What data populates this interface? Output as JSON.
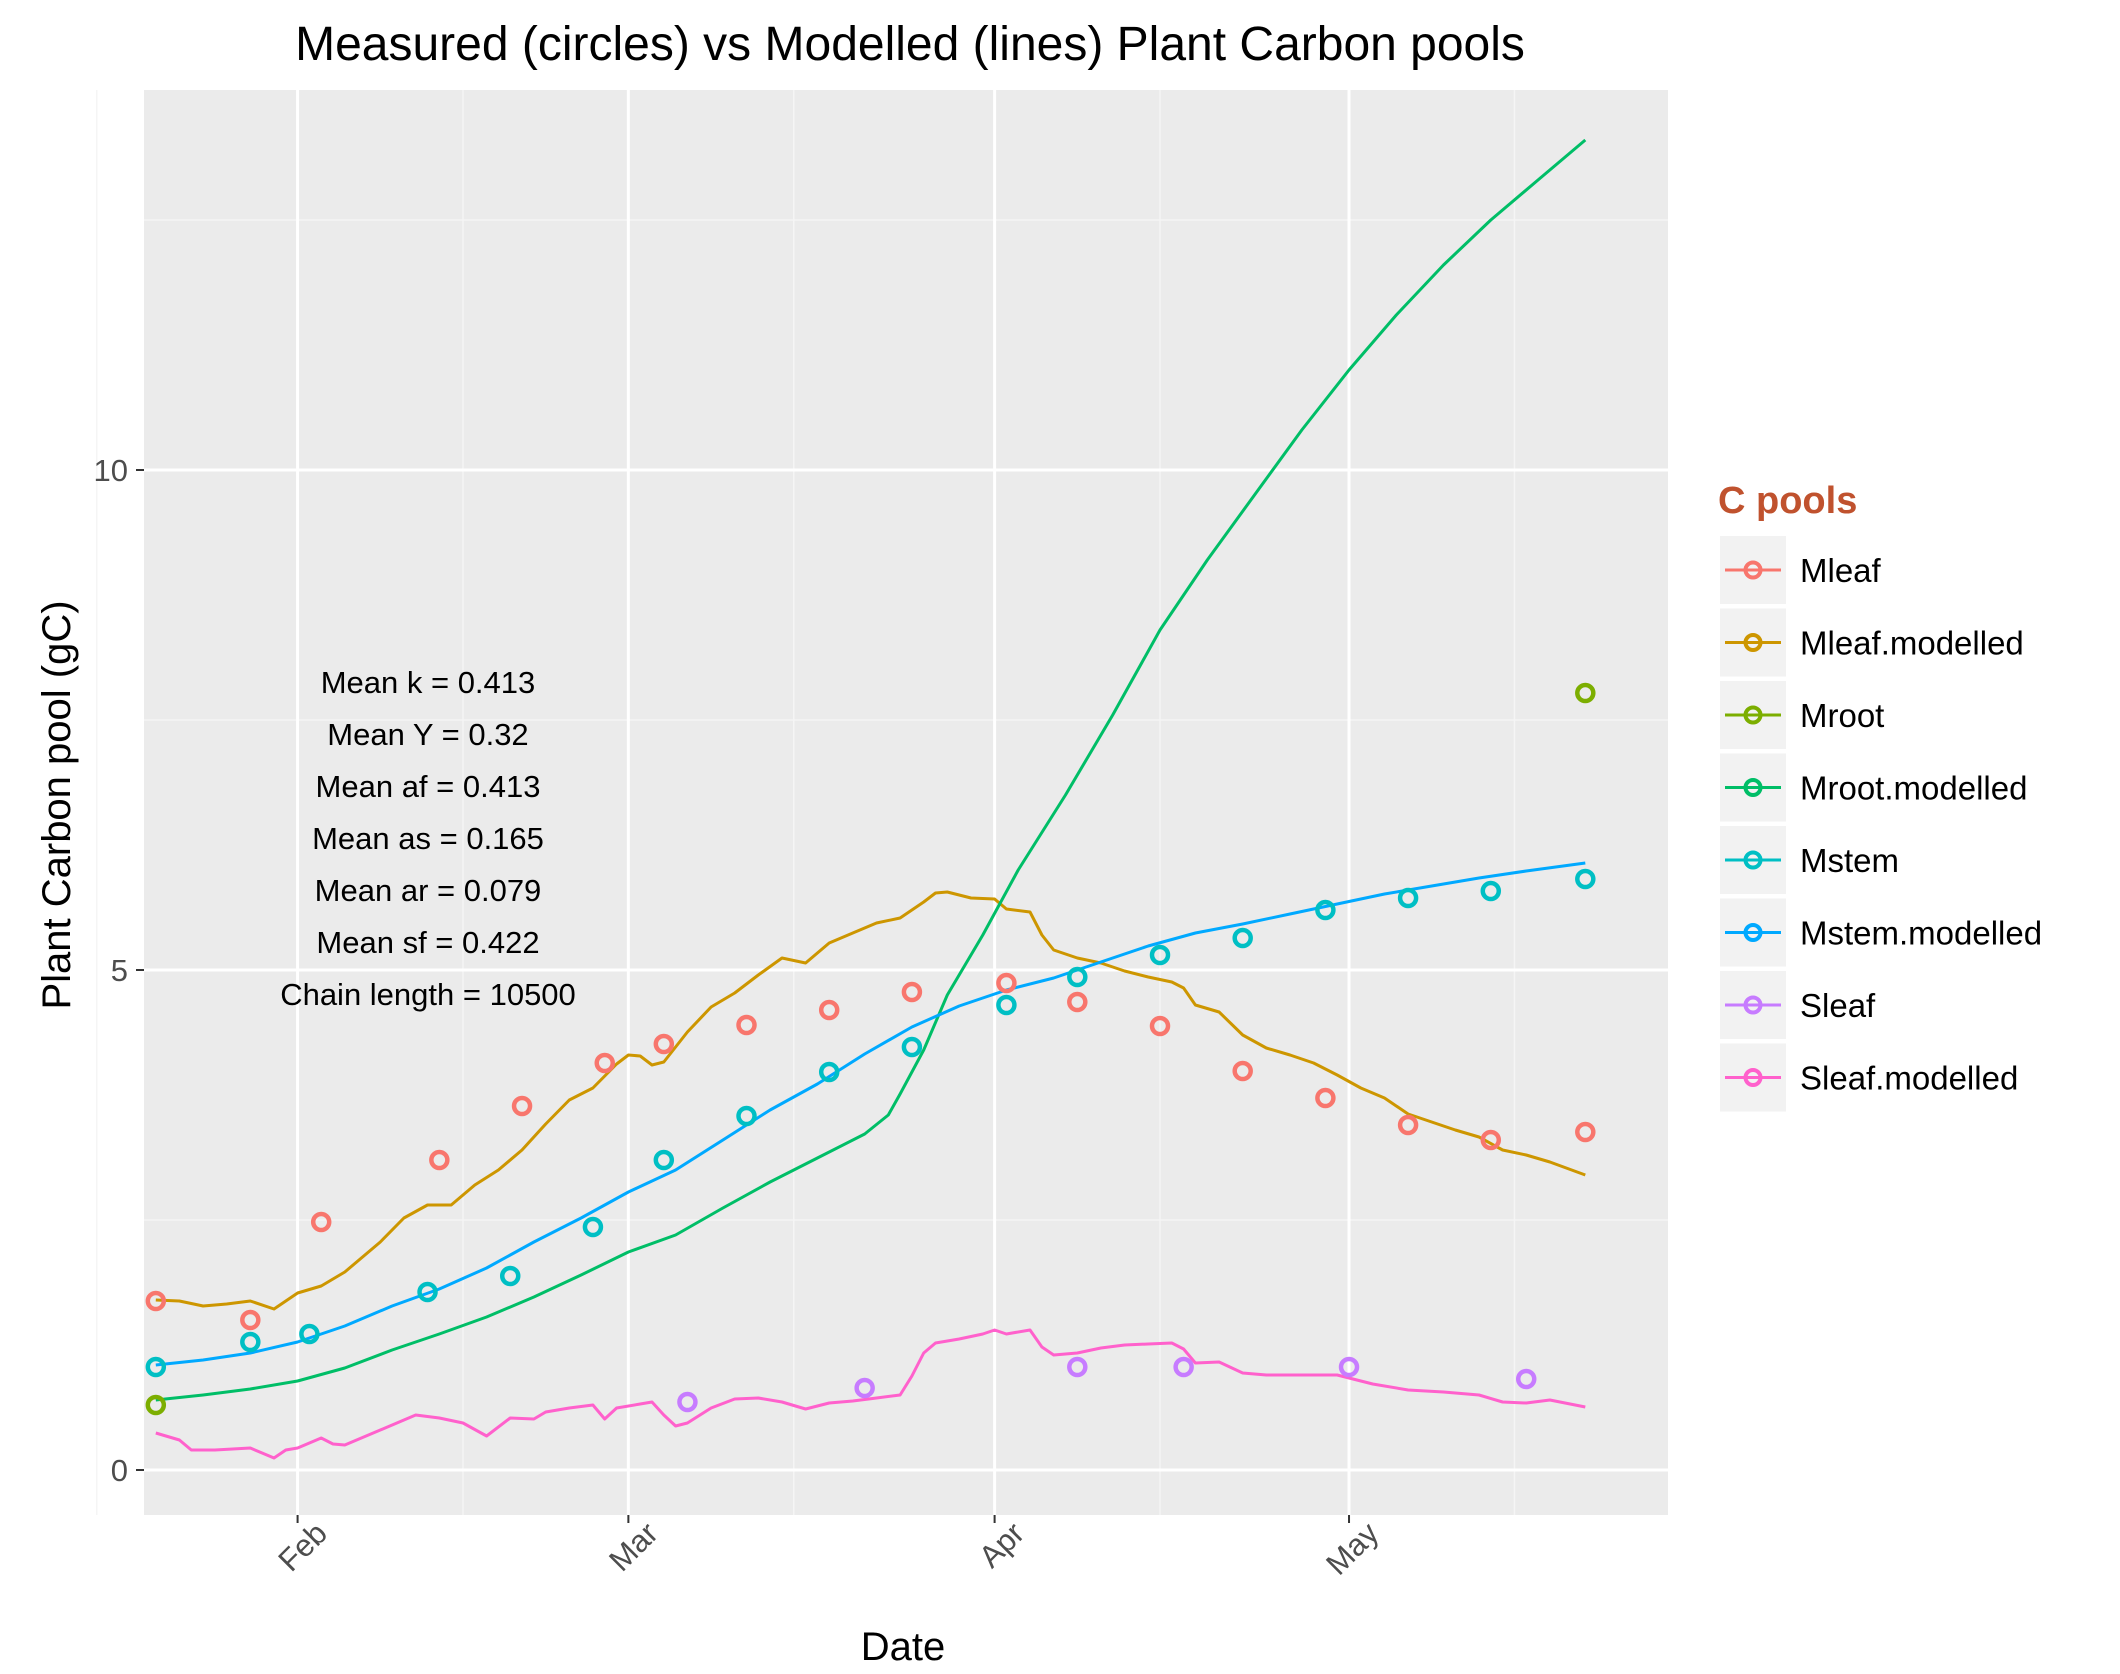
{
  "chart_data": {
    "type": "line",
    "title": "Measured (circles) vs Modelled (lines) Plant Carbon pools",
    "xlabel": "Date",
    "ylabel": "Plant Carbon pool (gC)",
    "x_axis": {
      "kind": "date",
      "range": [
        "2013-01-19",
        "2013-05-28"
      ],
      "ticks": [
        {
          "date": "2013-02-01",
          "label": "Feb"
        },
        {
          "date": "2013-03-01",
          "label": "Mar"
        },
        {
          "date": "2013-04-01",
          "label": "Apr"
        },
        {
          "date": "2013-05-01",
          "label": "May"
        }
      ],
      "minor_ticks": [
        "2013-01-15",
        "2013-02-15",
        "2013-03-15",
        "2013-04-15",
        "2013-05-15"
      ],
      "tick_label_rotation": 45
    },
    "y_axis": {
      "ylim": [
        -0.45,
        13.8
      ],
      "ticks": [
        0,
        5,
        10
      ],
      "minor_ticks": [
        2.5,
        7.5,
        12.5
      ]
    },
    "grid": true,
    "legend": {
      "title": "C pools",
      "position": "right",
      "entries": [
        "Mleaf",
        "Mleaf.modelled",
        "Mroot",
        "Mroot.modelled",
        "Mstem",
        "Mstem.modelled",
        "Sleaf",
        "Sleaf.modelled"
      ]
    },
    "colors": {
      "Mleaf": "#F8766D",
      "Mleaf.modelled": "#CD9600",
      "Mroot": "#7CAE00",
      "Mroot.modelled": "#00BE67",
      "Mstem": "#00BFC4",
      "Mstem.modelled": "#00A9FF",
      "Sleaf": "#C77CFF",
      "Sleaf.modelled": "#FF61CC"
    },
    "annotations": [
      "Mean k =  0.413",
      "Mean Y =  0.32",
      "Mean af =  0.413",
      "Mean as =  0.165",
      "Mean ar =  0.079",
      "Mean sf =  0.422",
      "Chain length =  10500"
    ],
    "series": [
      {
        "name": "Mleaf",
        "kind": "points",
        "points": [
          [
            "2013-01-20",
            1.69
          ],
          [
            "2013-01-28",
            1.5
          ],
          [
            "2013-02-03",
            2.48
          ],
          [
            "2013-02-13",
            3.1
          ],
          [
            "2013-02-20",
            3.64
          ],
          [
            "2013-02-27",
            4.07
          ],
          [
            "2013-03-04",
            4.26
          ],
          [
            "2013-03-11",
            4.45
          ],
          [
            "2013-03-18",
            4.6
          ],
          [
            "2013-03-25",
            4.78
          ],
          [
            "2013-04-02",
            4.87
          ],
          [
            "2013-04-08",
            4.68
          ],
          [
            "2013-04-15",
            4.44
          ],
          [
            "2013-04-22",
            3.99
          ],
          [
            "2013-04-29",
            3.72
          ],
          [
            "2013-05-06",
            3.45
          ],
          [
            "2013-05-13",
            3.3
          ],
          [
            "2013-05-21",
            3.38
          ]
        ]
      },
      {
        "name": "Mleaf.modelled",
        "kind": "line",
        "points": [
          [
            "2013-01-20",
            1.7
          ],
          [
            "2013-01-22",
            1.69
          ],
          [
            "2013-01-24",
            1.64
          ],
          [
            "2013-01-26",
            1.66
          ],
          [
            "2013-01-28",
            1.69
          ],
          [
            "2013-01-30",
            1.61
          ],
          [
            "2013-02-01",
            1.77
          ],
          [
            "2013-02-03",
            1.84
          ],
          [
            "2013-02-05",
            1.98
          ],
          [
            "2013-02-08",
            2.28
          ],
          [
            "2013-02-10",
            2.52
          ],
          [
            "2013-02-12",
            2.65
          ],
          [
            "2013-02-14",
            2.65
          ],
          [
            "2013-02-16",
            2.85
          ],
          [
            "2013-02-18",
            3.0
          ],
          [
            "2013-02-20",
            3.2
          ],
          [
            "2013-02-22",
            3.46
          ],
          [
            "2013-02-24",
            3.7
          ],
          [
            "2013-02-26",
            3.82
          ],
          [
            "2013-02-28",
            4.06
          ],
          [
            "2013-03-01",
            4.15
          ],
          [
            "2013-03-02",
            4.14
          ],
          [
            "2013-03-03",
            4.05
          ],
          [
            "2013-03-04",
            4.08
          ],
          [
            "2013-03-06",
            4.38
          ],
          [
            "2013-03-08",
            4.63
          ],
          [
            "2013-03-10",
            4.77
          ],
          [
            "2013-03-12",
            4.95
          ],
          [
            "2013-03-14",
            5.12
          ],
          [
            "2013-03-16",
            5.07
          ],
          [
            "2013-03-18",
            5.27
          ],
          [
            "2013-03-20",
            5.37
          ],
          [
            "2013-03-22",
            5.47
          ],
          [
            "2013-03-24",
            5.52
          ],
          [
            "2013-03-26",
            5.68
          ],
          [
            "2013-03-27",
            5.77
          ],
          [
            "2013-03-28",
            5.78
          ],
          [
            "2013-03-30",
            5.72
          ],
          [
            "2013-04-01",
            5.71
          ],
          [
            "2013-04-02",
            5.61
          ],
          [
            "2013-04-04",
            5.58
          ],
          [
            "2013-04-05",
            5.35
          ],
          [
            "2013-04-06",
            5.2
          ],
          [
            "2013-04-08",
            5.12
          ],
          [
            "2013-04-10",
            5.07
          ],
          [
            "2013-04-12",
            4.99
          ],
          [
            "2013-04-14",
            4.93
          ],
          [
            "2013-04-16",
            4.88
          ],
          [
            "2013-04-17",
            4.82
          ],
          [
            "2013-04-18",
            4.65
          ],
          [
            "2013-04-20",
            4.58
          ],
          [
            "2013-04-22",
            4.35
          ],
          [
            "2013-04-24",
            4.22
          ],
          [
            "2013-04-26",
            4.15
          ],
          [
            "2013-04-28",
            4.07
          ],
          [
            "2013-04-30",
            3.95
          ],
          [
            "2013-05-02",
            3.82
          ],
          [
            "2013-05-04",
            3.72
          ],
          [
            "2013-05-06",
            3.56
          ],
          [
            "2013-05-08",
            3.48
          ],
          [
            "2013-05-10",
            3.4
          ],
          [
            "2013-05-12",
            3.33
          ],
          [
            "2013-05-14",
            3.2
          ],
          [
            "2013-05-16",
            3.15
          ],
          [
            "2013-05-18",
            3.08
          ],
          [
            "2013-05-21",
            2.95
          ]
        ]
      },
      {
        "name": "Mroot",
        "kind": "points",
        "points": [
          [
            "2013-01-20",
            0.65
          ],
          [
            "2013-05-21",
            7.77
          ]
        ]
      },
      {
        "name": "Mroot.modelled",
        "kind": "line",
        "points": [
          [
            "2013-01-20",
            0.7
          ],
          [
            "2013-01-24",
            0.75
          ],
          [
            "2013-01-28",
            0.81
          ],
          [
            "2013-02-01",
            0.89
          ],
          [
            "2013-02-05",
            1.02
          ],
          [
            "2013-02-09",
            1.2
          ],
          [
            "2013-02-13",
            1.36
          ],
          [
            "2013-02-17",
            1.53
          ],
          [
            "2013-02-21",
            1.73
          ],
          [
            "2013-02-25",
            1.95
          ],
          [
            "2013-03-01",
            2.18
          ],
          [
            "2013-03-05",
            2.35
          ],
          [
            "2013-03-09",
            2.62
          ],
          [
            "2013-03-13",
            2.88
          ],
          [
            "2013-03-17",
            3.12
          ],
          [
            "2013-03-21",
            3.36
          ],
          [
            "2013-03-23",
            3.55
          ],
          [
            "2013-03-24",
            3.76
          ],
          [
            "2013-03-26",
            4.2
          ],
          [
            "2013-03-28",
            4.75
          ],
          [
            "2013-03-31",
            5.35
          ],
          [
            "2013-04-03",
            6.0
          ],
          [
            "2013-04-07",
            6.75
          ],
          [
            "2013-04-11",
            7.55
          ],
          [
            "2013-04-15",
            8.4
          ],
          [
            "2013-04-19",
            9.1
          ],
          [
            "2013-04-23",
            9.75
          ],
          [
            "2013-04-27",
            10.4
          ],
          [
            "2013-05-01",
            11.0
          ],
          [
            "2013-05-05",
            11.55
          ],
          [
            "2013-05-09",
            12.05
          ],
          [
            "2013-05-13",
            12.5
          ],
          [
            "2013-05-17",
            12.9
          ],
          [
            "2013-05-21",
            13.3
          ]
        ]
      },
      {
        "name": "Mstem",
        "kind": "points",
        "points": [
          [
            "2013-01-20",
            1.03
          ],
          [
            "2013-01-28",
            1.28
          ],
          [
            "2013-02-02",
            1.36
          ],
          [
            "2013-02-12",
            1.78
          ],
          [
            "2013-02-19",
            1.94
          ],
          [
            "2013-02-26",
            2.43
          ],
          [
            "2013-03-04",
            3.1
          ],
          [
            "2013-03-11",
            3.54
          ],
          [
            "2013-03-18",
            3.98
          ],
          [
            "2013-03-25",
            4.23
          ],
          [
            "2013-04-02",
            4.65
          ],
          [
            "2013-04-08",
            4.93
          ],
          [
            "2013-04-15",
            5.15
          ],
          [
            "2013-04-22",
            5.32
          ],
          [
            "2013-04-29",
            5.6
          ],
          [
            "2013-05-06",
            5.72
          ],
          [
            "2013-05-13",
            5.79
          ],
          [
            "2013-05-21",
            5.91
          ]
        ]
      },
      {
        "name": "Mstem.modelled",
        "kind": "line",
        "points": [
          [
            "2013-01-20",
            1.05
          ],
          [
            "2013-01-24",
            1.1
          ],
          [
            "2013-01-28",
            1.17
          ],
          [
            "2013-02-01",
            1.28
          ],
          [
            "2013-02-05",
            1.44
          ],
          [
            "2013-02-09",
            1.64
          ],
          [
            "2013-02-13",
            1.81
          ],
          [
            "2013-02-17",
            2.02
          ],
          [
            "2013-02-21",
            2.28
          ],
          [
            "2013-02-25",
            2.52
          ],
          [
            "2013-03-01",
            2.78
          ],
          [
            "2013-03-05",
            3.0
          ],
          [
            "2013-03-09",
            3.3
          ],
          [
            "2013-03-13",
            3.6
          ],
          [
            "2013-03-17",
            3.86
          ],
          [
            "2013-03-21",
            4.16
          ],
          [
            "2013-03-25",
            4.43
          ],
          [
            "2013-03-29",
            4.64
          ],
          [
            "2013-04-02",
            4.8
          ],
          [
            "2013-04-06",
            4.92
          ],
          [
            "2013-04-10",
            5.08
          ],
          [
            "2013-04-14",
            5.24
          ],
          [
            "2013-04-18",
            5.37
          ],
          [
            "2013-04-22",
            5.46
          ],
          [
            "2013-04-26",
            5.56
          ],
          [
            "2013-04-30",
            5.66
          ],
          [
            "2013-05-04",
            5.76
          ],
          [
            "2013-05-08",
            5.84
          ],
          [
            "2013-05-12",
            5.92
          ],
          [
            "2013-05-16",
            5.99
          ],
          [
            "2013-05-21",
            6.07
          ]
        ]
      },
      {
        "name": "Sleaf",
        "kind": "points",
        "points": [
          [
            "2013-03-06",
            0.68
          ],
          [
            "2013-03-21",
            0.82
          ],
          [
            "2013-04-08",
            1.03
          ],
          [
            "2013-04-17",
            1.03
          ],
          [
            "2013-05-01",
            1.03
          ],
          [
            "2013-05-16",
            0.91
          ]
        ]
      },
      {
        "name": "Sleaf.modelled",
        "kind": "line",
        "points": [
          [
            "2013-01-20",
            0.37
          ],
          [
            "2013-01-22",
            0.3
          ],
          [
            "2013-01-23",
            0.2
          ],
          [
            "2013-01-25",
            0.2
          ],
          [
            "2013-01-28",
            0.22
          ],
          [
            "2013-01-29",
            0.17
          ],
          [
            "2013-01-30",
            0.12
          ],
          [
            "2013-01-31",
            0.2
          ],
          [
            "2013-02-01",
            0.22
          ],
          [
            "2013-02-03",
            0.32
          ],
          [
            "2013-02-04",
            0.26
          ],
          [
            "2013-02-05",
            0.25
          ],
          [
            "2013-02-08",
            0.4
          ],
          [
            "2013-02-11",
            0.55
          ],
          [
            "2013-02-13",
            0.52
          ],
          [
            "2013-02-15",
            0.47
          ],
          [
            "2013-02-17",
            0.34
          ],
          [
            "2013-02-19",
            0.52
          ],
          [
            "2013-02-21",
            0.51
          ],
          [
            "2013-02-22",
            0.58
          ],
          [
            "2013-02-24",
            0.62
          ],
          [
            "2013-02-26",
            0.65
          ],
          [
            "2013-02-27",
            0.51
          ],
          [
            "2013-02-28",
            0.62
          ],
          [
            "2013-03-02",
            0.66
          ],
          [
            "2013-03-03",
            0.68
          ],
          [
            "2013-03-04",
            0.55
          ],
          [
            "2013-03-05",
            0.44
          ],
          [
            "2013-03-06",
            0.47
          ],
          [
            "2013-03-08",
            0.62
          ],
          [
            "2013-03-10",
            0.71
          ],
          [
            "2013-03-12",
            0.72
          ],
          [
            "2013-03-14",
            0.68
          ],
          [
            "2013-03-16",
            0.61
          ],
          [
            "2013-03-18",
            0.67
          ],
          [
            "2013-03-20",
            0.69
          ],
          [
            "2013-03-22",
            0.72
          ],
          [
            "2013-03-24",
            0.75
          ],
          [
            "2013-03-25",
            0.94
          ],
          [
            "2013-03-26",
            1.17
          ],
          [
            "2013-03-27",
            1.27
          ],
          [
            "2013-03-29",
            1.31
          ],
          [
            "2013-03-31",
            1.36
          ],
          [
            "2013-04-01",
            1.4
          ],
          [
            "2013-04-02",
            1.36
          ],
          [
            "2013-04-04",
            1.4
          ],
          [
            "2013-04-05",
            1.23
          ],
          [
            "2013-04-06",
            1.15
          ],
          [
            "2013-04-08",
            1.17
          ],
          [
            "2013-04-10",
            1.22
          ],
          [
            "2013-04-12",
            1.25
          ],
          [
            "2013-04-14",
            1.26
          ],
          [
            "2013-04-16",
            1.27
          ],
          [
            "2013-04-17",
            1.21
          ],
          [
            "2013-04-18",
            1.07
          ],
          [
            "2013-04-20",
            1.08
          ],
          [
            "2013-04-22",
            0.97
          ],
          [
            "2013-04-24",
            0.95
          ],
          [
            "2013-04-27",
            0.95
          ],
          [
            "2013-04-30",
            0.95
          ],
          [
            "2013-05-03",
            0.86
          ],
          [
            "2013-05-06",
            0.8
          ],
          [
            "2013-05-09",
            0.78
          ],
          [
            "2013-05-12",
            0.75
          ],
          [
            "2013-05-14",
            0.68
          ],
          [
            "2013-05-16",
            0.67
          ],
          [
            "2013-05-18",
            0.7
          ],
          [
            "2013-05-21",
            0.63
          ]
        ]
      }
    ]
  }
}
